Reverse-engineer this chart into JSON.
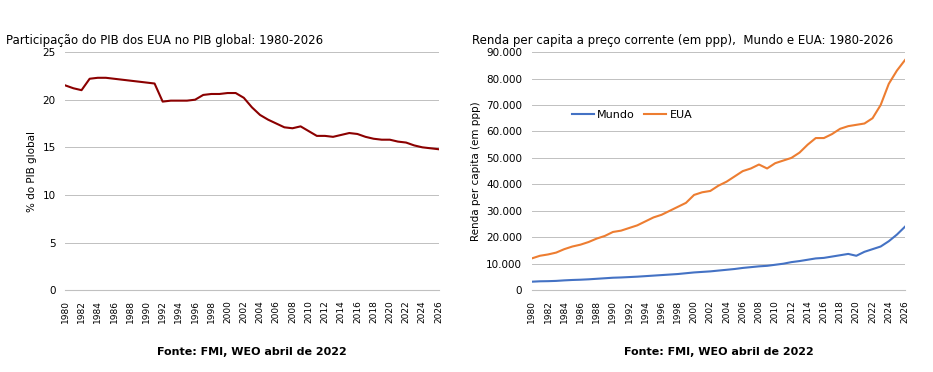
{
  "left_title": "Participação do PIB dos EUA no PIB global: 1980-2026",
  "left_ylabel": "% do PIB global",
  "left_source": "Fonte: FMI, WEO abril de 2022",
  "left_years": [
    1980,
    1981,
    1982,
    1983,
    1984,
    1985,
    1986,
    1987,
    1988,
    1989,
    1990,
    1991,
    1992,
    1993,
    1994,
    1995,
    1996,
    1997,
    1998,
    1999,
    2000,
    2001,
    2002,
    2003,
    2004,
    2005,
    2006,
    2007,
    2008,
    2009,
    2010,
    2011,
    2012,
    2013,
    2014,
    2015,
    2016,
    2017,
    2018,
    2019,
    2020,
    2021,
    2022,
    2023,
    2024,
    2025,
    2026
  ],
  "left_values": [
    21.5,
    21.2,
    21.0,
    22.2,
    22.3,
    22.3,
    22.2,
    22.1,
    22.0,
    21.9,
    21.8,
    21.7,
    19.8,
    19.9,
    19.9,
    19.9,
    20.0,
    20.5,
    20.6,
    20.6,
    20.7,
    20.7,
    20.2,
    19.2,
    18.4,
    17.9,
    17.5,
    17.1,
    17.0,
    17.2,
    16.7,
    16.2,
    16.2,
    16.1,
    16.3,
    16.5,
    16.4,
    16.1,
    15.9,
    15.8,
    15.8,
    15.6,
    15.5,
    15.2,
    15.0,
    14.9,
    14.8
  ],
  "left_line_color": "#8B0000",
  "left_ylim": [
    0,
    25
  ],
  "left_yticks": [
    0,
    5,
    10,
    15,
    20,
    25
  ],
  "right_title": "Renda per capita a preço corrente (em ppp),  Mundo e EUA: 1980-2026",
  "right_ylabel": "Renda per capita (em ppp)",
  "right_source": "Fonte: FMI, WEO abril de 2022",
  "right_years": [
    1980,
    1981,
    1982,
    1983,
    1984,
    1985,
    1986,
    1987,
    1988,
    1989,
    1990,
    1991,
    1992,
    1993,
    1994,
    1995,
    1996,
    1997,
    1998,
    1999,
    2000,
    2001,
    2002,
    2003,
    2004,
    2005,
    2006,
    2007,
    2008,
    2009,
    2010,
    2011,
    2012,
    2013,
    2014,
    2015,
    2016,
    2017,
    2018,
    2019,
    2020,
    2021,
    2022,
    2023,
    2024,
    2025,
    2026
  ],
  "mundo_values": [
    3200,
    3350,
    3400,
    3500,
    3700,
    3850,
    3950,
    4100,
    4300,
    4500,
    4700,
    4800,
    4950,
    5100,
    5300,
    5500,
    5700,
    5900,
    6100,
    6400,
    6700,
    6900,
    7100,
    7400,
    7700,
    8000,
    8400,
    8700,
    9000,
    9200,
    9600,
    10000,
    10600,
    11000,
    11500,
    12000,
    12200,
    12700,
    13200,
    13700,
    13000,
    14500,
    15500,
    16500,
    18500,
    21000,
    24000
  ],
  "eua_values": [
    12000,
    13000,
    13500,
    14200,
    15500,
    16500,
    17200,
    18200,
    19500,
    20500,
    22000,
    22500,
    23500,
    24500,
    26000,
    27500,
    28500,
    30000,
    31500,
    33000,
    36000,
    37000,
    37500,
    39500,
    41000,
    43000,
    45000,
    46000,
    47500,
    46000,
    48000,
    49000,
    50000,
    52000,
    55000,
    57500,
    57500,
    59000,
    61000,
    62000,
    62500,
    63000,
    65000,
    70000,
    78000,
    83000,
    87000
  ],
  "mundo_color": "#4472C4",
  "eua_color": "#ED7D31",
  "right_ylim": [
    0,
    90000
  ],
  "right_yticks": [
    0,
    10000,
    20000,
    30000,
    40000,
    50000,
    60000,
    70000,
    80000,
    90000
  ],
  "right_ytick_labels": [
    "0",
    "10.000",
    "20.000",
    "30.000",
    "40.000",
    "50.000",
    "60.000",
    "70.000",
    "80.000",
    "90.000"
  ],
  "xtick_years": [
    1980,
    1982,
    1984,
    1986,
    1988,
    1990,
    1992,
    1994,
    1996,
    1998,
    2000,
    2002,
    2004,
    2006,
    2008,
    2010,
    2012,
    2014,
    2016,
    2018,
    2020,
    2022,
    2024,
    2026
  ],
  "bg_color": "#FFFFFF",
  "grid_color": "#C0C0C0"
}
